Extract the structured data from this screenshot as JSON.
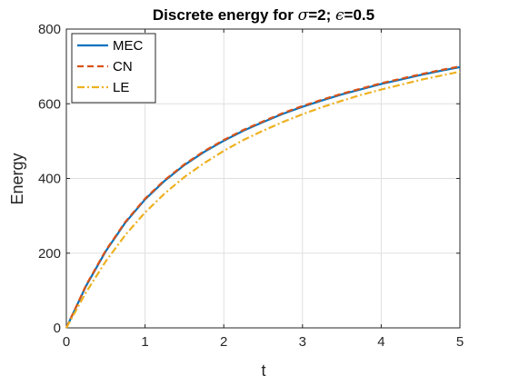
{
  "chart_data": {
    "type": "line",
    "title": {
      "prefix": "Discrete energy for ",
      "sigma_symbol": "σ",
      "sigma_value": "=2; ",
      "epsilon_symbol": "ϵ",
      "epsilon_value": "=0.5"
    },
    "xlabel": "t",
    "ylabel": "Energy",
    "xlim": [
      0,
      5
    ],
    "ylim": [
      0,
      800
    ],
    "xticks": [
      0,
      1,
      2,
      3,
      4,
      5
    ],
    "yticks": [
      0,
      200,
      400,
      600,
      800
    ],
    "grid": true,
    "legend_position": "top-left",
    "x": [
      0,
      0.25,
      0.5,
      0.75,
      1,
      1.25,
      1.5,
      1.75,
      2,
      2.25,
      2.5,
      2.75,
      3,
      3.25,
      3.5,
      3.75,
      4,
      4.25,
      4.5,
      4.75,
      5
    ],
    "series": [
      {
        "name": "MEC",
        "color": "#0072BD",
        "style": "solid",
        "values": [
          0,
          112,
          205,
          282,
          344,
          394,
          436,
          471,
          501,
          528,
          551,
          573,
          592,
          609,
          625,
          639,
          653,
          665,
          677,
          688,
          698
        ]
      },
      {
        "name": "CN",
        "color": "#D95319",
        "style": "dashed",
        "values": [
          0,
          114,
          207,
          284,
          346,
          396,
          438,
          473,
          503,
          530,
          553,
          575,
          594,
          611,
          627,
          641,
          655,
          667,
          679,
          690,
          700
        ]
      },
      {
        "name": "LE",
        "color": "#EDB120",
        "style": "dashdot",
        "values": [
          0,
          95,
          178,
          249,
          309,
          360,
          404,
          441,
          474,
          503,
          528,
          551,
          572,
          591,
          608,
          624,
          638,
          651,
          664,
          675,
          686
        ]
      }
    ]
  }
}
